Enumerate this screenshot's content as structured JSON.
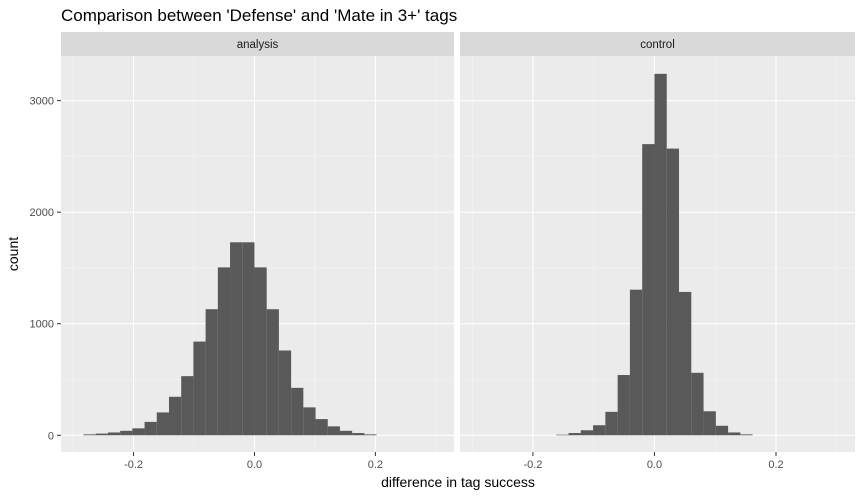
{
  "chart_data": {
    "type": "bar",
    "title": "Comparison between 'Defense' and 'Mate in 3+' tags",
    "xlabel": "difference in tag success",
    "ylabel": "count",
    "xlim": [
      -0.32,
      0.33
    ],
    "ylim": [
      -150,
      3400
    ],
    "x_ticks": [
      -0.2,
      0.0,
      0.2
    ],
    "x_tick_labels": [
      "-0.2",
      "0.0",
      "0.2"
    ],
    "y_ticks": [
      0,
      1000,
      2000,
      3000
    ],
    "y_tick_labels": [
      "0",
      "1000",
      "2000",
      "3000"
    ],
    "bin_width": 0.0202,
    "bar_color": "#595959",
    "panel_background": "#ebebeb",
    "strip_background": "#d9d9d9",
    "grid": true,
    "legend": "none",
    "panels": [
      {
        "label": "analysis",
        "bins": [
          {
            "x": -0.2727,
            "count": 8
          },
          {
            "x": -0.2525,
            "count": 15
          },
          {
            "x": -0.2323,
            "count": 25
          },
          {
            "x": -0.2121,
            "count": 40
          },
          {
            "x": -0.1919,
            "count": 62
          },
          {
            "x": -0.1717,
            "count": 120
          },
          {
            "x": -0.1515,
            "count": 205
          },
          {
            "x": -0.1313,
            "count": 345
          },
          {
            "x": -0.1111,
            "count": 530
          },
          {
            "x": -0.0909,
            "count": 840
          },
          {
            "x": -0.0707,
            "count": 1130
          },
          {
            "x": -0.0505,
            "count": 1505
          },
          {
            "x": -0.0303,
            "count": 1730
          },
          {
            "x": -0.0101,
            "count": 1730
          },
          {
            "x": 0.0101,
            "count": 1505
          },
          {
            "x": 0.0303,
            "count": 1130
          },
          {
            "x": 0.0505,
            "count": 760
          },
          {
            "x": 0.0707,
            "count": 425
          },
          {
            "x": 0.0909,
            "count": 250
          },
          {
            "x": 0.1111,
            "count": 145
          },
          {
            "x": 0.1313,
            "count": 80
          },
          {
            "x": 0.1515,
            "count": 40
          },
          {
            "x": 0.1717,
            "count": 20
          },
          {
            "x": 0.1919,
            "count": 8
          }
        ]
      },
      {
        "label": "control",
        "bins": [
          {
            "x": -0.1515,
            "count": 5
          },
          {
            "x": -0.1313,
            "count": 20
          },
          {
            "x": -0.1111,
            "count": 45
          },
          {
            "x": -0.0909,
            "count": 90
          },
          {
            "x": -0.0707,
            "count": 210
          },
          {
            "x": -0.0505,
            "count": 540
          },
          {
            "x": -0.0303,
            "count": 1305
          },
          {
            "x": -0.0101,
            "count": 2610
          },
          {
            "x": 0.0101,
            "count": 3240
          },
          {
            "x": 0.0303,
            "count": 2570
          },
          {
            "x": 0.0505,
            "count": 1285
          },
          {
            "x": 0.0707,
            "count": 560
          },
          {
            "x": 0.0909,
            "count": 215
          },
          {
            "x": 0.1111,
            "count": 85
          },
          {
            "x": 0.1313,
            "count": 25
          },
          {
            "x": 0.1515,
            "count": 8
          }
        ]
      }
    ]
  }
}
